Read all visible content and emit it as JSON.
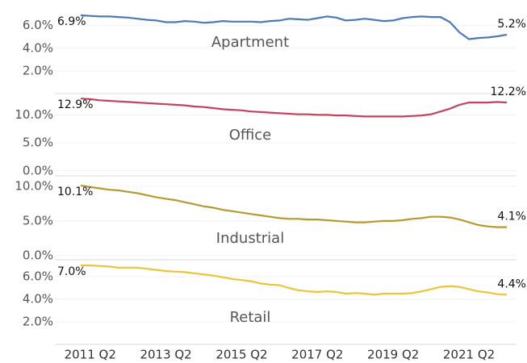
{
  "chart_data": {
    "type": "line",
    "categories": [
      null,
      "2011 Q2",
      null,
      null,
      null,
      null,
      null,
      null,
      null,
      "2013 Q2",
      null,
      null,
      null,
      null,
      null,
      null,
      null,
      "2015 Q2",
      null,
      null,
      null,
      null,
      null,
      null,
      null,
      "2017 Q2",
      null,
      null,
      null,
      null,
      null,
      null,
      null,
      "2019 Q2",
      null,
      null,
      null,
      null,
      null,
      null,
      null,
      "2021 Q2",
      null,
      null,
      null,
      null
    ],
    "series": [
      {
        "name": "Apartment",
        "color": "#4e79b5",
        "ylim": [
          0,
          7.4
        ],
        "yticks": [
          {
            "value": 6,
            "label": "6.0%"
          },
          {
            "value": 4,
            "label": "4.0%"
          },
          {
            "value": 2,
            "label": "2.0%"
          }
        ],
        "values": [
          6.9,
          6.85,
          6.8,
          6.8,
          6.75,
          6.7,
          6.6,
          6.5,
          6.45,
          6.3,
          6.3,
          6.4,
          6.35,
          6.25,
          6.3,
          6.4,
          6.35,
          6.35,
          6.35,
          6.3,
          6.4,
          6.45,
          6.6,
          6.55,
          6.5,
          6.65,
          6.8,
          6.7,
          6.45,
          6.5,
          6.6,
          6.5,
          6.4,
          6.45,
          6.65,
          6.75,
          6.8,
          6.75,
          6.75,
          6.3,
          5.4,
          4.8,
          4.9,
          4.95,
          5.05,
          5.2
        ],
        "value_labels": [
          "6.9%",
          null,
          null,
          null,
          null,
          null,
          null,
          null,
          null,
          null,
          null,
          null,
          null,
          null,
          null,
          null,
          null,
          null,
          null,
          null,
          null,
          null,
          null,
          null,
          null,
          null,
          null,
          null,
          null,
          null,
          null,
          null,
          null,
          null,
          null,
          null,
          null,
          null,
          null,
          null,
          null,
          null,
          null,
          null,
          null,
          "5.2%"
        ]
      },
      {
        "name": "Office",
        "color": "#c2435e",
        "ylim": [
          -0.9,
          13.8
        ],
        "yticks": [
          {
            "value": 10,
            "label": "10.0%"
          },
          {
            "value": 5,
            "label": "5.0%"
          },
          {
            "value": 0,
            "label": "0.0%"
          }
        ],
        "values": [
          12.9,
          12.8,
          12.6,
          12.5,
          12.4,
          12.3,
          12.2,
          12.1,
          12.0,
          11.9,
          11.8,
          11.7,
          11.5,
          11.4,
          11.2,
          11.0,
          10.9,
          10.8,
          10.6,
          10.5,
          10.4,
          10.3,
          10.2,
          10.1,
          10.1,
          10.0,
          10.0,
          9.9,
          9.9,
          9.8,
          9.7,
          9.7,
          9.7,
          9.7,
          9.7,
          9.8,
          9.9,
          10.1,
          10.6,
          11.1,
          11.8,
          12.2,
          12.2,
          12.2,
          12.3,
          12.2
        ],
        "value_labels": [
          "12.9%",
          null,
          null,
          null,
          null,
          null,
          null,
          null,
          null,
          null,
          null,
          null,
          null,
          null,
          null,
          null,
          null,
          null,
          null,
          null,
          null,
          null,
          null,
          null,
          null,
          null,
          null,
          null,
          null,
          null,
          null,
          null,
          null,
          null,
          null,
          null,
          null,
          null,
          null,
          null,
          null,
          null,
          null,
          null,
          null,
          "12.2%"
        ]
      },
      {
        "name": "Industrial",
        "color": "#b59a32",
        "ylim": [
          -0.6,
          11.5
        ],
        "yticks": [
          {
            "value": 10,
            "label": "10.0%"
          },
          {
            "value": 5,
            "label": "5.0%"
          },
          {
            "value": 0,
            "label": "0.0%"
          }
        ],
        "values": [
          10.1,
          9.9,
          9.7,
          9.5,
          9.4,
          9.2,
          9.0,
          8.7,
          8.4,
          8.2,
          8.0,
          7.7,
          7.4,
          7.1,
          6.9,
          6.6,
          6.4,
          6.2,
          6.0,
          5.8,
          5.6,
          5.4,
          5.3,
          5.3,
          5.2,
          5.2,
          5.1,
          5.0,
          4.9,
          4.8,
          4.8,
          4.9,
          5.0,
          5.0,
          5.1,
          5.3,
          5.4,
          5.6,
          5.6,
          5.5,
          5.2,
          4.8,
          4.4,
          4.2,
          4.1,
          4.1
        ],
        "value_labels": [
          "10.1%",
          null,
          null,
          null,
          null,
          null,
          null,
          null,
          null,
          null,
          null,
          null,
          null,
          null,
          null,
          null,
          null,
          null,
          null,
          null,
          null,
          null,
          null,
          null,
          null,
          null,
          null,
          null,
          null,
          null,
          null,
          null,
          null,
          null,
          null,
          null,
          null,
          null,
          null,
          null,
          null,
          null,
          null,
          null,
          null,
          "4.1%"
        ]
      },
      {
        "name": "Retail",
        "color": "#e8c53a",
        "ylim": [
          0,
          7.5
        ],
        "yticks": [
          {
            "value": 6,
            "label": "6.0%"
          },
          {
            "value": 4,
            "label": "4.0%"
          },
          {
            "value": 2,
            "label": "2.0%"
          }
        ],
        "values": [
          7.0,
          7.0,
          6.95,
          6.9,
          6.8,
          6.8,
          6.8,
          6.7,
          6.6,
          6.5,
          6.45,
          6.4,
          6.3,
          6.2,
          6.1,
          5.95,
          5.8,
          5.7,
          5.6,
          5.4,
          5.3,
          5.25,
          5.0,
          4.8,
          4.7,
          4.65,
          4.7,
          4.65,
          4.5,
          4.55,
          4.5,
          4.4,
          4.5,
          4.5,
          4.5,
          4.55,
          4.7,
          4.9,
          5.1,
          5.15,
          5.1,
          4.9,
          4.7,
          4.6,
          4.45,
          4.4
        ],
        "value_labels": [
          "7.0%",
          null,
          null,
          null,
          null,
          null,
          null,
          null,
          null,
          null,
          null,
          null,
          null,
          null,
          null,
          null,
          null,
          null,
          null,
          null,
          null,
          null,
          null,
          null,
          null,
          null,
          null,
          null,
          null,
          null,
          null,
          null,
          null,
          null,
          null,
          null,
          null,
          null,
          null,
          null,
          null,
          null,
          null,
          null,
          null,
          "4.4%"
        ]
      }
    ]
  }
}
